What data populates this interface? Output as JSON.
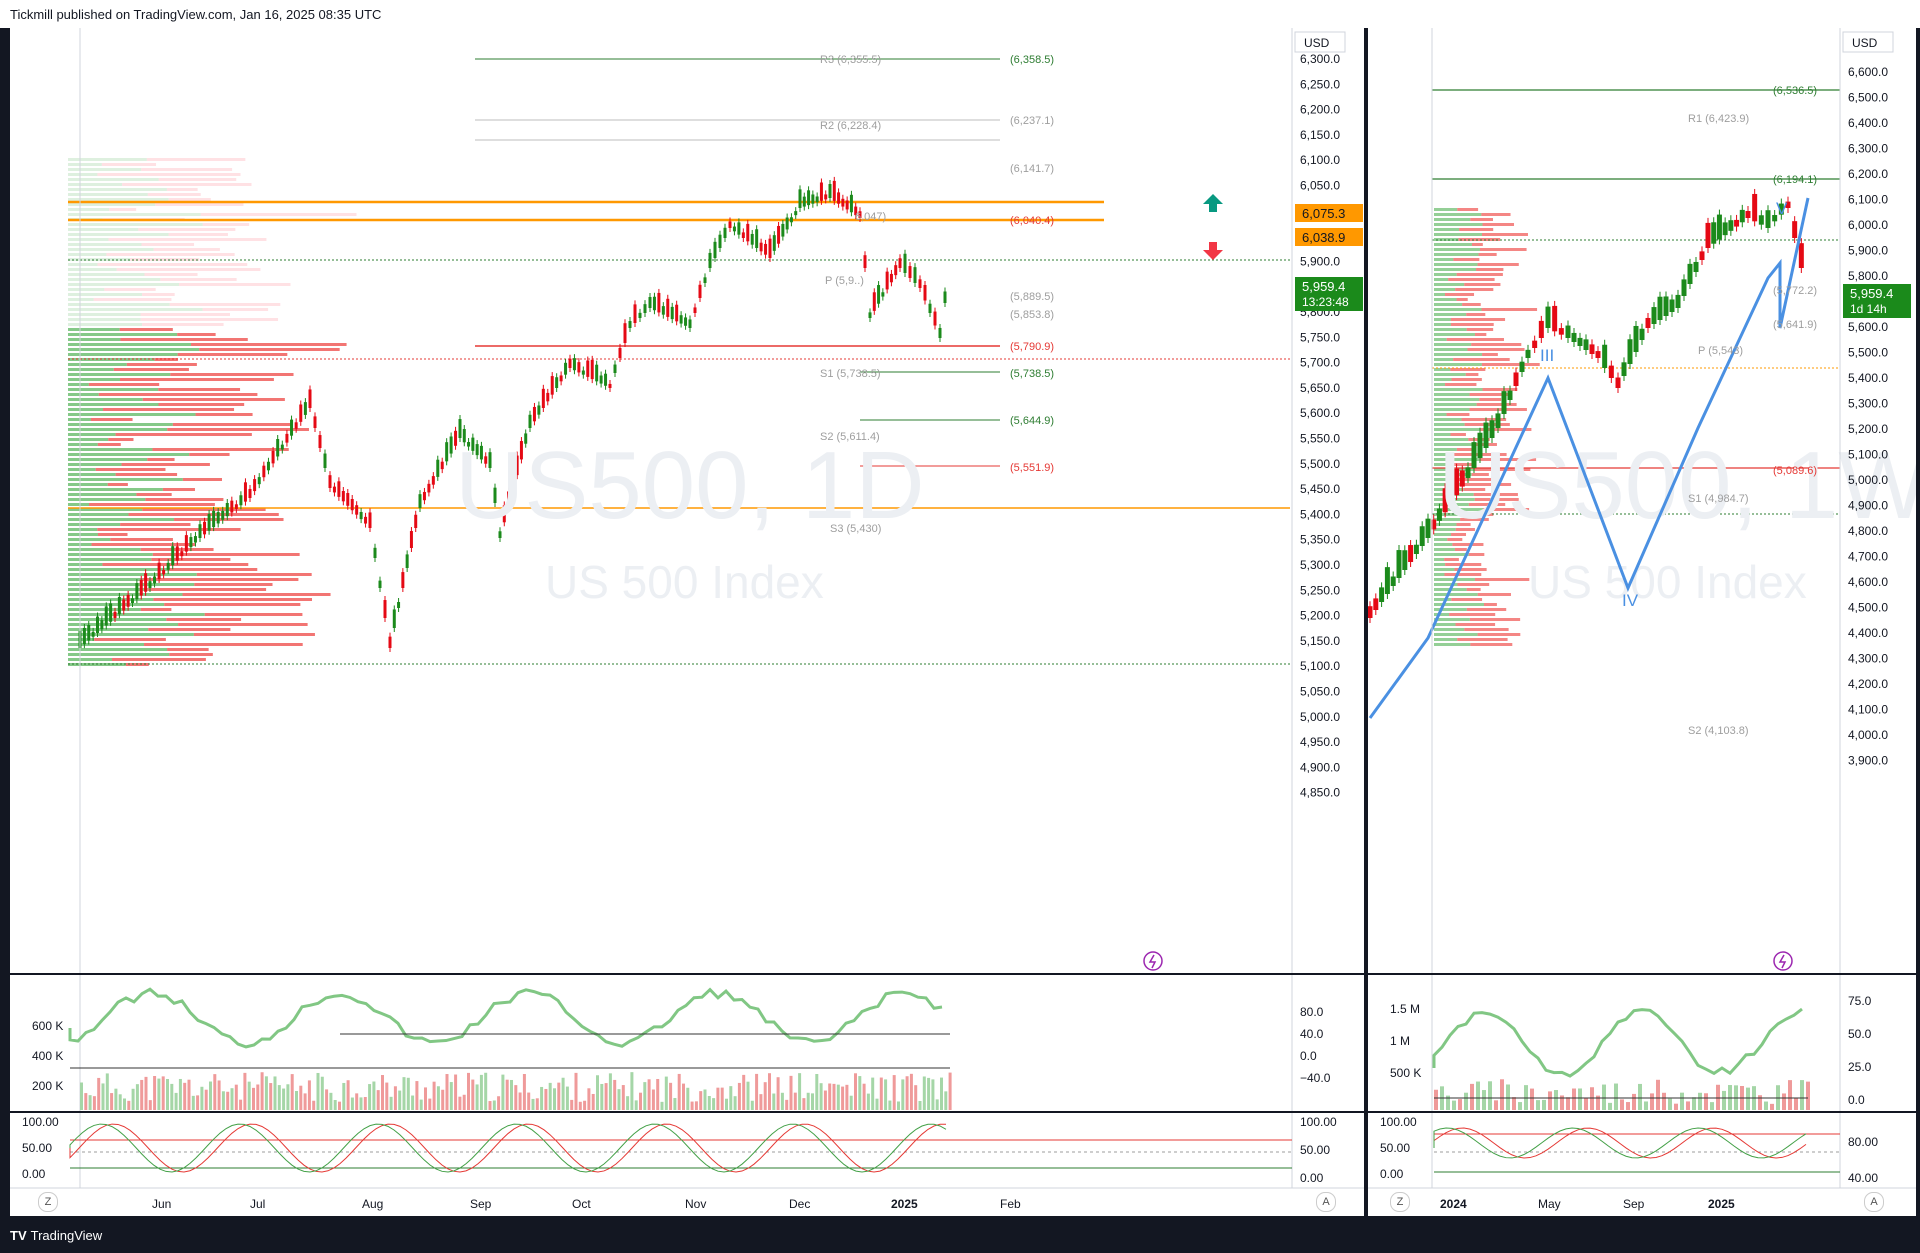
{
  "header": {
    "publisher_text": "Tickmill published on TradingView.com, Jan 16, 2025 08:35 UTC"
  },
  "footer": {
    "brand": "TradingView"
  },
  "left_chart": {
    "watermark_symbol": "US500, 1D",
    "watermark_name": "US 500 Index",
    "currency": "USD",
    "price_ticks": [
      "6,300.0",
      "6,250.0",
      "6,200.0",
      "6,150.0",
      "6,100.0",
      "6,050.0",
      "6,000.0",
      "5,950.0",
      "5,900.0",
      "5,850.0",
      "5,800.0",
      "5,750.0",
      "5,700.0",
      "5,650.0",
      "5,600.0",
      "5,550.0",
      "5,500.0",
      "5,450.0",
      "5,400.0",
      "5,350.0",
      "5,300.0",
      "5,250.0",
      "5,200.0",
      "5,150.0",
      "5,100.0",
      "5,050.0",
      "5,000.0",
      "4,950.0",
      "4,900.0",
      "4,850.0"
    ],
    "time_ticks": [
      "Jun",
      "Jul",
      "Aug",
      "Sep",
      "Oct",
      "Nov",
      "Dec",
      "2025",
      "Feb"
    ],
    "badges": {
      "upper": "6,075.3",
      "lower": "6,038.9",
      "last_price": "5,959.4",
      "countdown": "13:23:48"
    },
    "levels": [
      {
        "text": "(6,358.5)",
        "color": "#2e7d32"
      },
      {
        "text": "R3 (6,355.5)",
        "color": "#9e9e9e"
      },
      {
        "text": "(6,237.1)",
        "color": "#9e9e9e"
      },
      {
        "text": "R2 (6,228.4)",
        "color": "#9e9e9e"
      },
      {
        "text": "(6,141.7)",
        "color": "#9e9e9e"
      },
      {
        "text": "(6,040.4)",
        "color": "#e53935"
      },
      {
        "text": "6,047)",
        "color": "#9e9e9e"
      },
      {
        "text": "(5,889.5)",
        "color": "#9e9e9e"
      },
      {
        "text": "(5,853.8)",
        "color": "#9e9e9e"
      },
      {
        "text": "P (5,9..)",
        "color": "#9e9e9e"
      },
      {
        "text": "(5,790.9)",
        "color": "#e53935"
      },
      {
        "text": "S1 (5,738.5)",
        "color": "#9e9e9e"
      },
      {
        "text": "(5,738.5)",
        "color": "#2e7d32"
      },
      {
        "text": "(5,644.9)",
        "color": "#2e7d32"
      },
      {
        "text": "S2 (5,611.4)",
        "color": "#9e9e9e"
      },
      {
        "text": "(5,551.9)",
        "color": "#e53935"
      },
      {
        "text": "S3 (5,430)",
        "color": "#9e9e9e"
      }
    ],
    "volume_ticks": [
      "600 K",
      "400 K",
      "200 K"
    ],
    "volume_right_ticks": [
      "80.0",
      "40.0",
      "0.0",
      "−40.0"
    ],
    "stoch_ticks": [
      "100.00",
      "50.00",
      "0.00"
    ],
    "stoch_right_ticks": [
      "100.00",
      "50.00",
      "0.00"
    ]
  },
  "right_chart": {
    "watermark_symbol": "US500, 1W",
    "watermark_name": "US 500 Index",
    "currency": "USD",
    "price_ticks": [
      "6,600.0",
      "6,500.0",
      "6,400.0",
      "6,300.0",
      "6,200.0",
      "6,100.0",
      "6,000.0",
      "5,900.0",
      "5,800.0",
      "5,700.0",
      "5,600.0",
      "5,500.0",
      "5,400.0",
      "5,300.0",
      "5,200.0",
      "5,100.0",
      "5,000.0",
      "4,900.0",
      "4,800.0",
      "4,700.0",
      "4,600.0",
      "4,500.0",
      "4,400.0",
      "4,300.0",
      "4,200.0",
      "4,100.0",
      "4,000.0",
      "3,900.0"
    ],
    "time_ticks": [
      "2024",
      "May",
      "Sep",
      "2025"
    ],
    "badges": {
      "last_price": "5,959.4",
      "countdown": "1d 14h"
    },
    "levels": [
      {
        "text": "(6,536.5)",
        "color": "#2e7d32"
      },
      {
        "text": "R1 (6,423.9)",
        "color": "#9e9e9e"
      },
      {
        "text": "(6,194.1)",
        "color": "#2e7d32"
      },
      {
        "text": "(5,772.2)",
        "color": "#9e9e9e"
      },
      {
        "text": "(5,641.9)",
        "color": "#9e9e9e"
      },
      {
        "text": "P (5,543)",
        "color": "#9e9e9e"
      },
      {
        "text": "(5,089.6)",
        "color": "#e53935"
      },
      {
        "text": "S1 (4,984.7)",
        "color": "#9e9e9e"
      },
      {
        "text": "S2 (4,103.8)",
        "color": "#9e9e9e"
      }
    ],
    "wave_labels": [
      "III",
      "IV",
      "V"
    ],
    "volume_ticks": [
      "1.5 M",
      "1 M",
      "500 K"
    ],
    "volume_right_ticks": [
      "75.0",
      "50.0",
      "25.0",
      "0.0"
    ],
    "stoch_ticks": [
      "100.00",
      "50.00",
      "0.00"
    ],
    "stoch_right_ticks": [
      "80.00",
      "40.00"
    ]
  },
  "colors": {
    "up": "#089981",
    "up_candle": "#1b8a1b",
    "down": "#f23645",
    "orange": "#ff9800",
    "green_line": "#2e7d32",
    "red_line": "#e53935",
    "wave": "#4a90e2"
  }
}
